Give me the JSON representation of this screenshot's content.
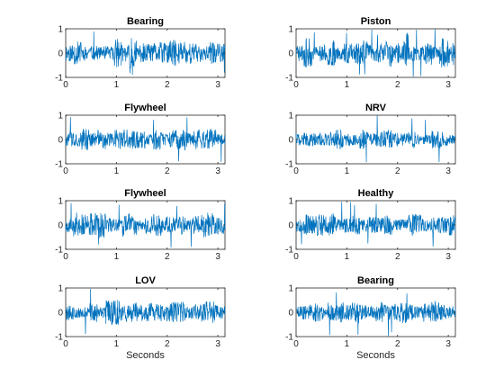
{
  "chart_data": [
    {
      "type": "line",
      "title": "Bearing",
      "xlabel": "",
      "xlim": [
        0,
        3.14
      ],
      "ylim": [
        -1,
        1
      ],
      "xticks": [
        "0",
        "1",
        "2",
        "3"
      ],
      "yticks": [
        "1",
        "0",
        "-1"
      ],
      "color": "#0072BD",
      "samples": 500,
      "amplitude": 0.45,
      "seed": 11
    },
    {
      "type": "line",
      "title": "Piston",
      "xlabel": "",
      "xlim": [
        0,
        3.14
      ],
      "ylim": [
        -1,
        1
      ],
      "xticks": [
        "0",
        "1",
        "2",
        "3"
      ],
      "yticks": [
        "1",
        "0",
        "-1"
      ],
      "color": "#0072BD",
      "samples": 500,
      "amplitude": 0.45,
      "seed": 23
    },
    {
      "type": "line",
      "title": "Flywheel",
      "xlabel": "",
      "xlim": [
        0,
        3.14
      ],
      "ylim": [
        -1,
        1
      ],
      "xticks": [
        "0",
        "1",
        "2",
        "3"
      ],
      "yticks": [
        "1",
        "0",
        "-1"
      ],
      "color": "#0072BD",
      "samples": 500,
      "amplitude": 0.35,
      "seed": 37
    },
    {
      "type": "line",
      "title": "NRV",
      "xlabel": "",
      "xlim": [
        0,
        3.14
      ],
      "ylim": [
        -1,
        1
      ],
      "xticks": [
        "0",
        "1",
        "2",
        "3"
      ],
      "yticks": [
        "1",
        "0",
        "-1"
      ],
      "color": "#0072BD",
      "samples": 500,
      "amplitude": 0.3,
      "seed": 41
    },
    {
      "type": "line",
      "title": "Flywheel",
      "xlabel": "",
      "xlim": [
        0,
        3.14
      ],
      "ylim": [
        -1,
        1
      ],
      "xticks": [
        "0",
        "1",
        "2",
        "3"
      ],
      "yticks": [
        "1",
        "0",
        "-1"
      ],
      "color": "#0072BD",
      "samples": 500,
      "amplitude": 0.4,
      "seed": 53
    },
    {
      "type": "line",
      "title": "Healthy",
      "xlabel": "",
      "xlim": [
        0,
        3.14
      ],
      "ylim": [
        -1,
        1
      ],
      "xticks": [
        "0",
        "1",
        "2",
        "3"
      ],
      "yticks": [
        "1",
        "0",
        "-1"
      ],
      "color": "#0072BD",
      "samples": 500,
      "amplitude": 0.35,
      "seed": 67
    },
    {
      "type": "line",
      "title": "LOV",
      "xlabel": "Seconds",
      "xlim": [
        0,
        3.14
      ],
      "ylim": [
        -1,
        1
      ],
      "xticks": [
        "0",
        "1",
        "2",
        "3"
      ],
      "yticks": [
        "1",
        "0",
        "-1"
      ],
      "color": "#0072BD",
      "samples": 500,
      "amplitude": 0.4,
      "seed": 79
    },
    {
      "type": "line",
      "title": "Bearing",
      "xlabel": "Seconds",
      "xlim": [
        0,
        3.14
      ],
      "ylim": [
        -1,
        1
      ],
      "xticks": [
        "0",
        "1",
        "2",
        "3"
      ],
      "yticks": [
        "1",
        "0",
        "-1"
      ],
      "color": "#0072BD",
      "samples": 500,
      "amplitude": 0.35,
      "seed": 83
    }
  ]
}
